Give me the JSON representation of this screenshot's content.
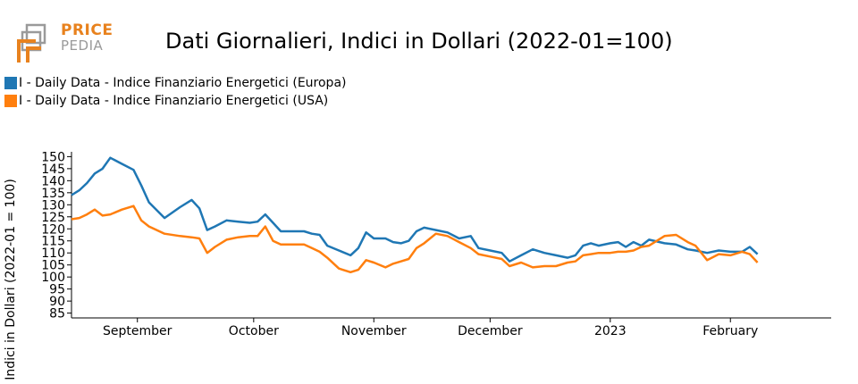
{
  "logo": {
    "line1": "PRICE",
    "line2": "PEDIA"
  },
  "colors": {
    "europa": "#1f77b4",
    "usa": "#ff7f0e",
    "logo_orange": "#e8821e",
    "logo_gray": "#9a9a9a"
  },
  "chart_data": {
    "type": "line",
    "title": "Dati Giornalieri, Indici in Dollari (2022-01=100)",
    "xlabel": "",
    "ylabel": "Indici in Dollari (2022-01 = 100)",
    "ylim": [
      83,
      152
    ],
    "xlim": [
      "2022-08-15",
      "2023-02-27"
    ],
    "yticks": [
      85,
      90,
      95,
      100,
      105,
      110,
      115,
      120,
      125,
      130,
      135,
      140,
      145,
      150
    ],
    "xticks": [
      {
        "date": "2022-09-01",
        "label": "September"
      },
      {
        "date": "2022-10-01",
        "label": "October"
      },
      {
        "date": "2022-11-01",
        "label": "November"
      },
      {
        "date": "2022-12-01",
        "label": "December"
      },
      {
        "date": "2023-01-01",
        "label": "2023"
      },
      {
        "date": "2023-02-01",
        "label": "February"
      }
    ],
    "grid": false,
    "legend_position": "top-left",
    "series": [
      {
        "name": "I - Daily Data - Indice Finanziario Energetici (Europa)",
        "color": "#1f77b4",
        "points": [
          [
            "2022-08-15",
            134
          ],
          [
            "2022-08-17",
            136
          ],
          [
            "2022-08-19",
            139
          ],
          [
            "2022-08-21",
            143
          ],
          [
            "2022-08-23",
            145
          ],
          [
            "2022-08-25",
            149.5
          ],
          [
            "2022-08-28",
            147
          ],
          [
            "2022-08-31",
            144.5
          ],
          [
            "2022-09-02",
            138
          ],
          [
            "2022-09-04",
            131
          ],
          [
            "2022-09-08",
            124.5
          ],
          [
            "2022-09-12",
            129
          ],
          [
            "2022-09-15",
            132
          ],
          [
            "2022-09-17",
            128.5
          ],
          [
            "2022-09-19",
            119.5
          ],
          [
            "2022-09-21",
            121
          ],
          [
            "2022-09-24",
            123.5
          ],
          [
            "2022-09-27",
            123
          ],
          [
            "2022-09-30",
            122.5
          ],
          [
            "2022-10-02",
            123
          ],
          [
            "2022-10-04",
            126
          ],
          [
            "2022-10-06",
            122.5
          ],
          [
            "2022-10-08",
            119
          ],
          [
            "2022-10-11",
            119
          ],
          [
            "2022-10-14",
            119
          ],
          [
            "2022-10-16",
            118
          ],
          [
            "2022-10-18",
            117.5
          ],
          [
            "2022-10-20",
            113
          ],
          [
            "2022-10-23",
            111
          ],
          [
            "2022-10-26",
            109
          ],
          [
            "2022-10-28",
            112
          ],
          [
            "2022-10-30",
            118.5
          ],
          [
            "2022-11-01",
            116
          ],
          [
            "2022-11-04",
            116
          ],
          [
            "2022-11-06",
            114.5
          ],
          [
            "2022-11-08",
            114
          ],
          [
            "2022-11-10",
            115
          ],
          [
            "2022-11-12",
            119
          ],
          [
            "2022-11-14",
            120.5
          ],
          [
            "2022-11-17",
            119.5
          ],
          [
            "2022-11-20",
            118.5
          ],
          [
            "2022-11-23",
            116
          ],
          [
            "2022-11-26",
            117
          ],
          [
            "2022-11-28",
            112
          ],
          [
            "2022-12-01",
            111
          ],
          [
            "2022-12-04",
            110
          ],
          [
            "2022-12-06",
            106.5
          ],
          [
            "2022-12-09",
            109
          ],
          [
            "2022-12-12",
            111.5
          ],
          [
            "2022-12-15",
            110
          ],
          [
            "2022-12-18",
            109
          ],
          [
            "2022-12-21",
            108
          ],
          [
            "2022-12-23",
            109
          ],
          [
            "2022-12-25",
            113
          ],
          [
            "2022-12-27",
            114
          ],
          [
            "2022-12-29",
            113
          ],
          [
            "2023-01-01",
            114
          ],
          [
            "2023-01-03",
            114.5
          ],
          [
            "2023-01-05",
            112.5
          ],
          [
            "2023-01-07",
            114.5
          ],
          [
            "2023-01-09",
            113
          ],
          [
            "2023-01-11",
            115.5
          ],
          [
            "2023-01-15",
            114
          ],
          [
            "2023-01-18",
            113.5
          ],
          [
            "2023-01-21",
            111.5
          ],
          [
            "2023-01-23",
            111
          ],
          [
            "2023-01-26",
            110
          ],
          [
            "2023-01-29",
            111
          ],
          [
            "2023-02-01",
            110.5
          ],
          [
            "2023-02-04",
            110.5
          ],
          [
            "2023-02-06",
            112.5
          ],
          [
            "2023-02-08",
            109.5
          ]
        ]
      },
      {
        "name": "I - Daily Data - Indice Finanziario Energetici (USA)",
        "color": "#ff7f0e",
        "points": [
          [
            "2022-08-15",
            124
          ],
          [
            "2022-08-17",
            124.5
          ],
          [
            "2022-08-19",
            126
          ],
          [
            "2022-08-21",
            128
          ],
          [
            "2022-08-23",
            125.5
          ],
          [
            "2022-08-25",
            126
          ],
          [
            "2022-08-28",
            128
          ],
          [
            "2022-08-31",
            129.5
          ],
          [
            "2022-09-02",
            123.5
          ],
          [
            "2022-09-04",
            121
          ],
          [
            "2022-09-08",
            118
          ],
          [
            "2022-09-12",
            117
          ],
          [
            "2022-09-15",
            116.5
          ],
          [
            "2022-09-17",
            116
          ],
          [
            "2022-09-19",
            110
          ],
          [
            "2022-09-21",
            112.5
          ],
          [
            "2022-09-24",
            115.5
          ],
          [
            "2022-09-27",
            116.5
          ],
          [
            "2022-09-30",
            117
          ],
          [
            "2022-10-02",
            117
          ],
          [
            "2022-10-04",
            121
          ],
          [
            "2022-10-06",
            115
          ],
          [
            "2022-10-08",
            113.5
          ],
          [
            "2022-10-11",
            113.5
          ],
          [
            "2022-10-14",
            113.5
          ],
          [
            "2022-10-16",
            112
          ],
          [
            "2022-10-18",
            110.5
          ],
          [
            "2022-10-20",
            108
          ],
          [
            "2022-10-23",
            103.5
          ],
          [
            "2022-10-26",
            102
          ],
          [
            "2022-10-28",
            103
          ],
          [
            "2022-10-30",
            107
          ],
          [
            "2022-11-01",
            106
          ],
          [
            "2022-11-04",
            104
          ],
          [
            "2022-11-06",
            105.5
          ],
          [
            "2022-11-08",
            106.5
          ],
          [
            "2022-11-10",
            107.5
          ],
          [
            "2022-11-12",
            112
          ],
          [
            "2022-11-14",
            114
          ],
          [
            "2022-11-17",
            118
          ],
          [
            "2022-11-20",
            117
          ],
          [
            "2022-11-23",
            114.5
          ],
          [
            "2022-11-26",
            112
          ],
          [
            "2022-11-28",
            109.5
          ],
          [
            "2022-12-01",
            108.5
          ],
          [
            "2022-12-04",
            107.5
          ],
          [
            "2022-12-06",
            104.5
          ],
          [
            "2022-12-09",
            106
          ],
          [
            "2022-12-12",
            104
          ],
          [
            "2022-12-15",
            104.5
          ],
          [
            "2022-12-18",
            104.5
          ],
          [
            "2022-12-21",
            106
          ],
          [
            "2022-12-23",
            106.5
          ],
          [
            "2022-12-25",
            109
          ],
          [
            "2022-12-27",
            109.5
          ],
          [
            "2022-12-29",
            110
          ],
          [
            "2023-01-01",
            110
          ],
          [
            "2023-01-03",
            110.5
          ],
          [
            "2023-01-05",
            110.5
          ],
          [
            "2023-01-07",
            111
          ],
          [
            "2023-01-09",
            112.5
          ],
          [
            "2023-01-11",
            113
          ],
          [
            "2023-01-15",
            117
          ],
          [
            "2023-01-18",
            117.5
          ],
          [
            "2023-01-21",
            114.5
          ],
          [
            "2023-01-23",
            113
          ],
          [
            "2023-01-26",
            107
          ],
          [
            "2023-01-29",
            109.5
          ],
          [
            "2023-02-01",
            109
          ],
          [
            "2023-02-04",
            110.5
          ],
          [
            "2023-02-06",
            109.5
          ],
          [
            "2023-02-08",
            106
          ]
        ]
      }
    ]
  }
}
